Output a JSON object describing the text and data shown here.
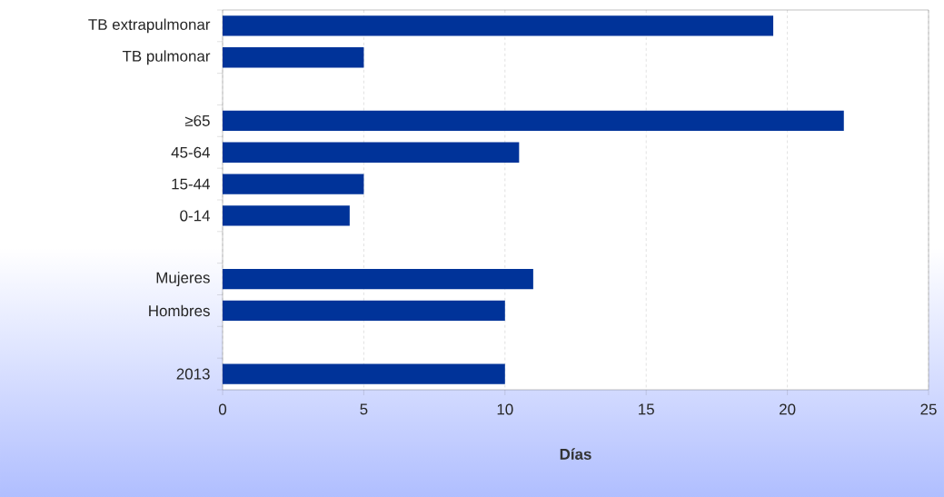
{
  "chart_data": {
    "type": "bar",
    "orientation": "horizontal",
    "xlabel": "Días",
    "categories": [
      "TB extrapulmonar",
      "TB pulmonar",
      null,
      "≥65",
      "45-64",
      "15-44",
      "0-14",
      null,
      "Mujeres",
      "Hombres",
      null,
      "2013"
    ],
    "values": [
      19.5,
      5,
      null,
      22,
      10.5,
      5,
      4.5,
      null,
      11,
      10,
      null,
      10
    ],
    "color": "#003399",
    "xlim": [
      0,
      25
    ],
    "xticks": [
      0,
      5,
      10,
      15,
      20,
      25
    ],
    "grid": "x"
  }
}
